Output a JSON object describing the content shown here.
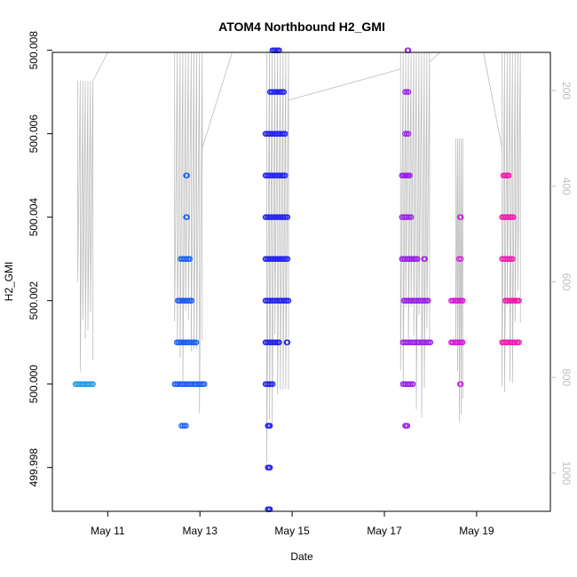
{
  "chart_data": {
    "type": "scatter",
    "title": "ATOM4 Northbound H2_GMI",
    "xlabel": "Date",
    "ylabel": "H2_GMI",
    "x_ticks": [
      "May 11",
      "May 13",
      "May 15",
      "May 17",
      "May 19"
    ],
    "x_tick_days": [
      11,
      13,
      15,
      17,
      19
    ],
    "xlim_days": [
      9.8,
      20.6
    ],
    "ylim": [
      499.99695,
      500.00795
    ],
    "y_ticks": [
      499.998,
      500.0,
      500.002,
      500.004,
      500.006,
      500.008
    ],
    "y_tick_labels": [
      "499.998",
      "500.000",
      "500.002",
      "500.004",
      "500.006",
      "500.008"
    ],
    "y2_ticks": [
      200,
      400,
      600,
      800,
      1000
    ],
    "y2_tick_labels": [
      "200",
      "400",
      "600",
      "800",
      "1000"
    ],
    "y2_lim_reversed": [
      1080,
      120
    ],
    "y2_color": "#bdbdbd",
    "grid": false,
    "legend": "none",
    "color_scale": [
      "#1e9be8",
      "#1a5ff0",
      "#2222ee",
      "#5a1ee8",
      "#9a20e6",
      "#d219d8",
      "#f01ab0"
    ],
    "series": [
      {
        "points": [
          {
            "x_day": 10.3,
            "x_end": 10.68,
            "y": 500.0,
            "c": "#1e9be8"
          },
          {
            "x_day": 12.45,
            "x_end": 13.1,
            "y": 500.0,
            "c": "#1a5ff0"
          },
          {
            "x_day": 12.6,
            "x_end": 12.7,
            "y": 499.999,
            "c": "#1a5ff0"
          },
          {
            "x_day": 12.5,
            "x_end": 12.92,
            "y": 500.001,
            "c": "#1a5ff0"
          },
          {
            "x_day": 12.52,
            "x_end": 12.82,
            "y": 500.002,
            "c": "#1a5ff0"
          },
          {
            "x_day": 12.58,
            "x_end": 12.78,
            "y": 500.003,
            "c": "#1a5ff0"
          },
          {
            "x_day": 12.7,
            "x_end": 12.72,
            "y": 500.004,
            "c": "#1a5ff0"
          },
          {
            "x_day": 12.7,
            "x_end": 12.72,
            "y": 500.005,
            "c": "#1a5ff0"
          },
          {
            "x_day": 14.42,
            "x_end": 14.58,
            "y": 500.0,
            "c": "#2222ee"
          },
          {
            "x_day": 14.47,
            "x_end": 14.52,
            "y": 499.999,
            "c": "#2222ee"
          },
          {
            "x_day": 14.47,
            "x_end": 14.52,
            "y": 499.998,
            "c": "#2222ee"
          },
          {
            "x_day": 14.47,
            "x_end": 14.52,
            "y": 499.997,
            "c": "#2222ee"
          },
          {
            "x_day": 14.42,
            "x_end": 14.72,
            "y": 500.001,
            "c": "#2222ee"
          },
          {
            "x_day": 14.88,
            "x_end": 14.9,
            "y": 500.001,
            "c": "#2222ee"
          },
          {
            "x_day": 14.42,
            "x_end": 14.92,
            "y": 500.002,
            "c": "#2222ee"
          },
          {
            "x_day": 14.42,
            "x_end": 14.9,
            "y": 500.003,
            "c": "#2222ee"
          },
          {
            "x_day": 14.42,
            "x_end": 14.9,
            "y": 500.004,
            "c": "#2222ee"
          },
          {
            "x_day": 14.42,
            "x_end": 14.85,
            "y": 500.005,
            "c": "#2222ee"
          },
          {
            "x_day": 14.42,
            "x_end": 14.85,
            "y": 500.006,
            "c": "#2222ee"
          },
          {
            "x_day": 14.52,
            "x_end": 14.82,
            "y": 500.007,
            "c": "#2222ee"
          },
          {
            "x_day": 14.57,
            "x_end": 14.72,
            "y": 500.008,
            "c": "#2222ee"
          },
          {
            "x_day": 14.57,
            "x_end": 14.72,
            "y": 500.009,
            "c": "#2222ee"
          },
          {
            "x_day": 17.4,
            "x_end": 17.62,
            "y": 500.0,
            "c": "#9a20e6"
          },
          {
            "x_day": 17.45,
            "x_end": 17.5,
            "y": 499.999,
            "c": "#9a20e6"
          },
          {
            "x_day": 17.4,
            "x_end": 18.0,
            "y": 500.001,
            "c": "#9a20e6"
          },
          {
            "x_day": 17.42,
            "x_end": 17.95,
            "y": 500.002,
            "c": "#9a20e6"
          },
          {
            "x_day": 17.38,
            "x_end": 17.72,
            "y": 500.003,
            "c": "#9a20e6"
          },
          {
            "x_day": 17.86,
            "x_end": 17.88,
            "y": 500.003,
            "c": "#9a20e6"
          },
          {
            "x_day": 17.38,
            "x_end": 17.58,
            "y": 500.004,
            "c": "#9a20e6"
          },
          {
            "x_day": 17.38,
            "x_end": 17.55,
            "y": 500.005,
            "c": "#9a20e6"
          },
          {
            "x_day": 17.45,
            "x_end": 17.52,
            "y": 500.006,
            "c": "#9a20e6"
          },
          {
            "x_day": 17.45,
            "x_end": 17.52,
            "y": 500.007,
            "c": "#9a20e6"
          },
          {
            "x_day": 17.5,
            "x_end": 17.52,
            "y": 500.008,
            "c": "#9a20e6"
          },
          {
            "x_day": 18.45,
            "x_end": 18.7,
            "y": 500.001,
            "c": "#d219d8"
          },
          {
            "x_day": 18.45,
            "x_end": 18.7,
            "y": 500.002,
            "c": "#d219d8"
          },
          {
            "x_day": 18.62,
            "x_end": 18.66,
            "y": 500.003,
            "c": "#d219d8"
          },
          {
            "x_day": 18.64,
            "x_end": 18.66,
            "y": 500.004,
            "c": "#d219d8"
          },
          {
            "x_day": 18.64,
            "x_end": 18.66,
            "y": 500.0,
            "c": "#d219d8"
          },
          {
            "x_day": 19.55,
            "x_end": 19.92,
            "y": 500.001,
            "c": "#f01ab0"
          },
          {
            "x_day": 19.62,
            "x_end": 19.92,
            "y": 500.002,
            "c": "#f01ab0"
          },
          {
            "x_day": 19.55,
            "x_end": 19.78,
            "y": 500.003,
            "c": "#f01ab0"
          },
          {
            "x_day": 19.55,
            "x_end": 19.8,
            "y": 500.004,
            "c": "#f01ab0"
          },
          {
            "x_day": 19.58,
            "x_end": 19.7,
            "y": 500.005,
            "c": "#f01ab0"
          }
        ]
      }
    ],
    "altitude_trace": {
      "axis": "y2",
      "color": "#bdbdbd",
      "segments": [
        {
          "x_start": 10.35,
          "x_end": 10.68,
          "y2_hi": 180,
          "y2_lo": 800
        },
        {
          "x_start": 12.45,
          "x_end": 13.05,
          "y2_hi": 120,
          "y2_lo": 880
        },
        {
          "x_start": 14.45,
          "x_end": 14.92,
          "y2_hi": 120,
          "y2_lo": 1000
        },
        {
          "x_start": 17.35,
          "x_end": 17.98,
          "y2_hi": 120,
          "y2_lo": 900
        },
        {
          "x_start": 18.55,
          "x_end": 18.7,
          "y2_hi": 300,
          "y2_lo": 900
        },
        {
          "x_start": 19.55,
          "x_end": 19.95,
          "y2_hi": 120,
          "y2_lo": 860
        }
      ],
      "connectors": [
        {
          "x": [
            10.68,
            11.0
          ],
          "y2": [
            180,
            120
          ]
        },
        {
          "x": [
            13.05,
            13.7
          ],
          "y2": [
            320,
            120
          ]
        },
        {
          "x": [
            14.92,
            17.35
          ],
          "y2": [
            220,
            155
          ]
        },
        {
          "x": [
            17.98,
            18.2
          ],
          "y2": [
            140,
            120
          ]
        },
        {
          "x": [
            19.15,
            19.55
          ],
          "y2": [
            120,
            320
          ]
        }
      ]
    }
  }
}
